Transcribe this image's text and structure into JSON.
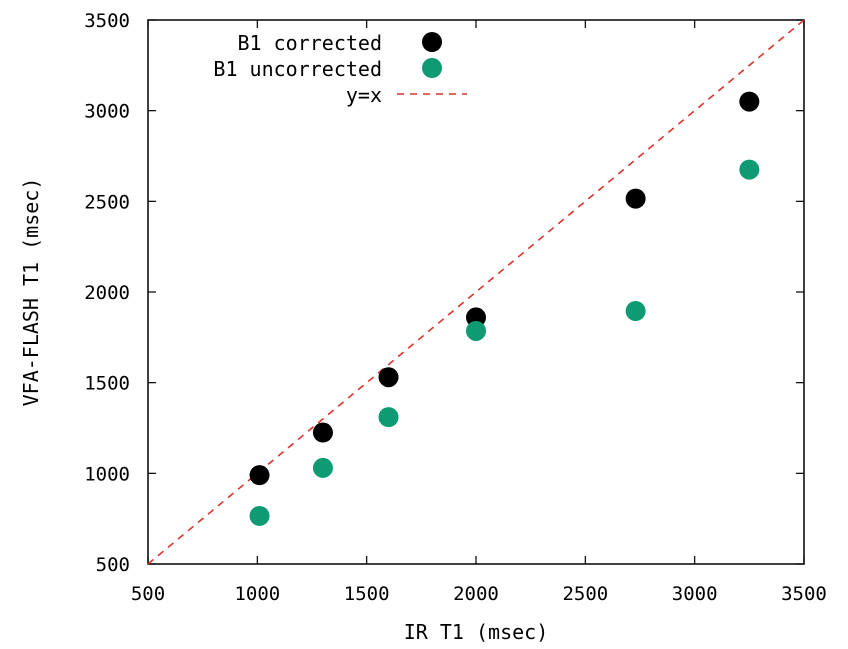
{
  "chart_data": {
    "type": "scatter",
    "title": "",
    "xlabel": "IR T1 (msec)",
    "ylabel": "VFA-FLASH T1 (msec)",
    "xlim": [
      500,
      3500
    ],
    "ylim": [
      500,
      3500
    ],
    "xticks": [
      500,
      1000,
      1500,
      2000,
      2500,
      3000,
      3500
    ],
    "yticks": [
      500,
      1000,
      1500,
      2000,
      2500,
      3000,
      3500
    ],
    "grid": false,
    "legend_position": "top-right",
    "series": [
      {
        "name": "B1 corrected",
        "color": "#000000",
        "marker": "circle",
        "x": [
          1010,
          1300,
          1600,
          2000,
          2730,
          3250
        ],
        "y": [
          990,
          1225,
          1530,
          1860,
          2515,
          3050
        ]
      },
      {
        "name": "B1 uncorrected",
        "color": "#0e9a72",
        "marker": "circle",
        "x": [
          1010,
          1300,
          1600,
          2000,
          2730,
          3250
        ],
        "y": [
          765,
          1030,
          1310,
          1785,
          1895,
          2675
        ]
      }
    ],
    "reference_line": {
      "name": "y=x",
      "color": "#d9352b",
      "style": "dashed",
      "x": [
        500,
        3500
      ],
      "y": [
        500,
        3500
      ]
    }
  }
}
